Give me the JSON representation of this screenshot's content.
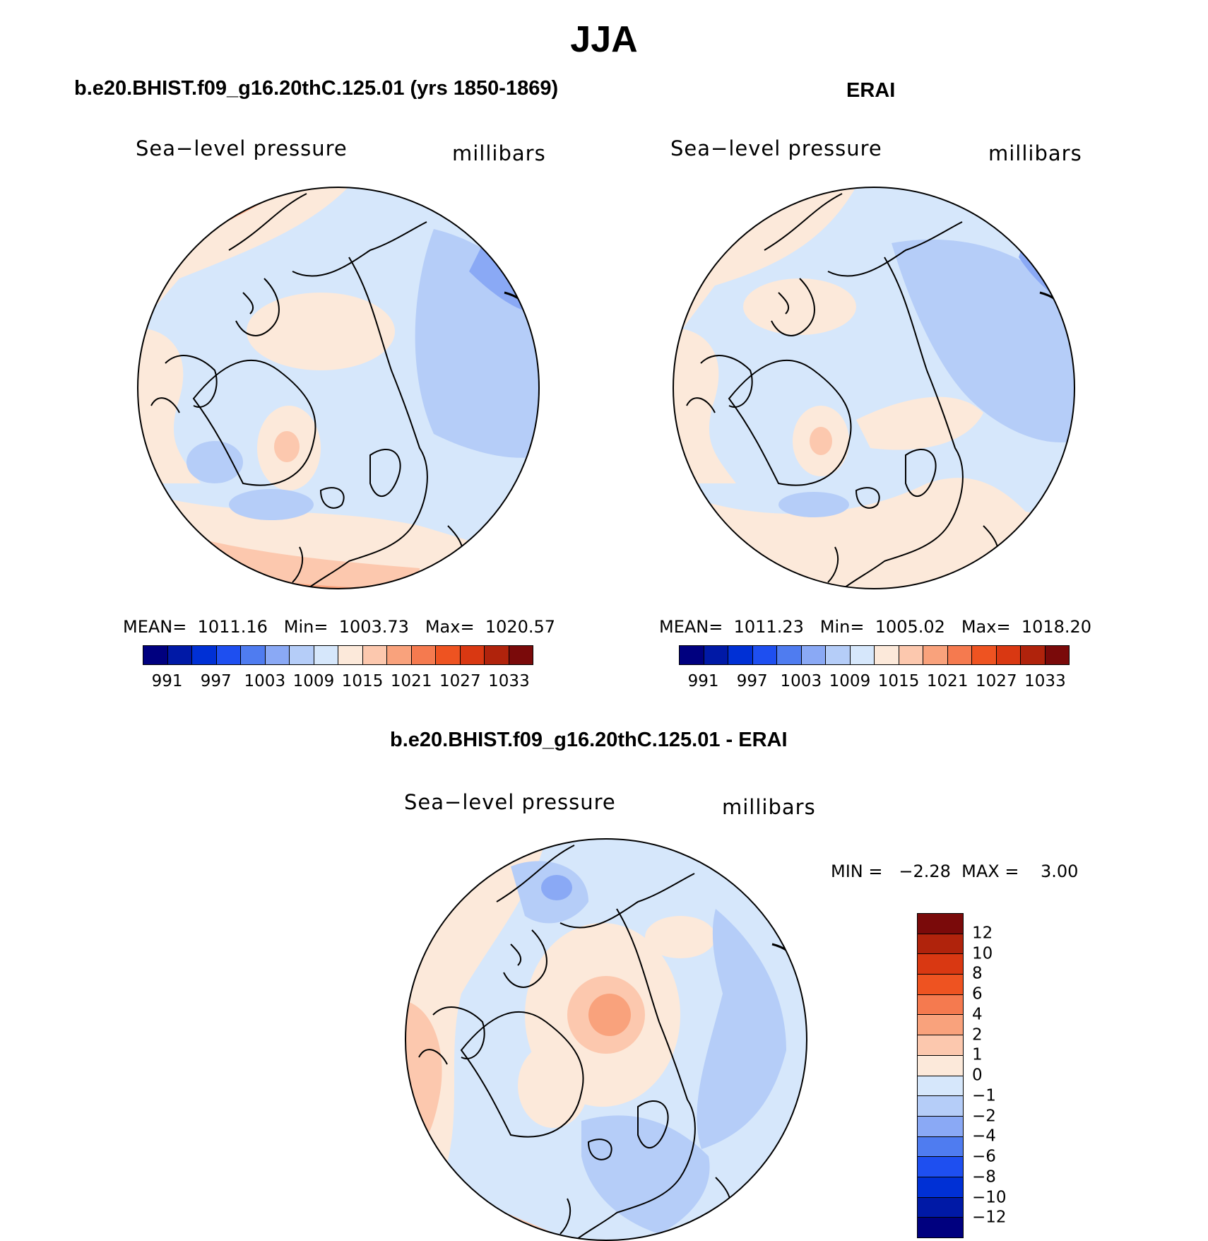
{
  "title": "JJA",
  "panels": [
    {
      "id": "model",
      "title": "b.e20.BHIST.f09_g16.20thC.125.01 (yrs 1850-1869)",
      "left_label": "Sea−level pressure",
      "right_label": "millibars",
      "stats": "MEAN=  1011.16   Min=  1003.73   Max=  1020.57",
      "colorbar": {
        "colors": [
          "#00007f",
          "#0019a6",
          "#0030d5",
          "#1e4ff0",
          "#4f7cf0",
          "#8aa9f5",
          "#b5cdf8",
          "#d6e7fb",
          "#fce9da",
          "#fcc8ae",
          "#f9a27c",
          "#f57a4f",
          "#ee5321",
          "#d93812",
          "#b0230c",
          "#7a0a0a"
        ],
        "labels": [
          "991",
          "997",
          "1003",
          "1009",
          "1015",
          "1021",
          "1027",
          "1033"
        ]
      }
    },
    {
      "id": "obs",
      "title": "ERAI",
      "left_label": "Sea−level pressure",
      "right_label": "millibars",
      "stats": "MEAN=  1011.23   Min=  1005.02   Max=  1018.20",
      "colorbar": {
        "colors": [
          "#00007f",
          "#0019a6",
          "#0030d5",
          "#1e4ff0",
          "#4f7cf0",
          "#8aa9f5",
          "#b5cdf8",
          "#d6e7fb",
          "#fce9da",
          "#fcc8ae",
          "#f9a27c",
          "#f57a4f",
          "#ee5321",
          "#d93812",
          "#b0230c",
          "#7a0a0a"
        ],
        "labels": [
          "991",
          "997",
          "1003",
          "1009",
          "1015",
          "1021",
          "1027",
          "1033"
        ]
      }
    },
    {
      "id": "diff",
      "title": "b.e20.BHIST.f09_g16.20thC.125.01 - ERAI",
      "left_label": "Sea−level pressure",
      "right_label": "millibars",
      "stats": "MIN =   −2.28  MAX =    3.00",
      "colorbar": {
        "colors": [
          "#7a0a0a",
          "#b0230c",
          "#d93812",
          "#ee5321",
          "#f57a4f",
          "#f9a27c",
          "#fcc8ae",
          "#fce9da",
          "#d6e7fb",
          "#b5cdf8",
          "#8aa9f5",
          "#4f7cf0",
          "#1e4ff0",
          "#0030d5",
          "#0019a6",
          "#00007f"
        ],
        "labels": [
          "12",
          "10",
          "8",
          "6",
          "4",
          "2",
          "1",
          "0",
          "−1",
          "−2",
          "−4",
          "−6",
          "−8",
          "−10",
          "−12"
        ]
      }
    }
  ]
}
